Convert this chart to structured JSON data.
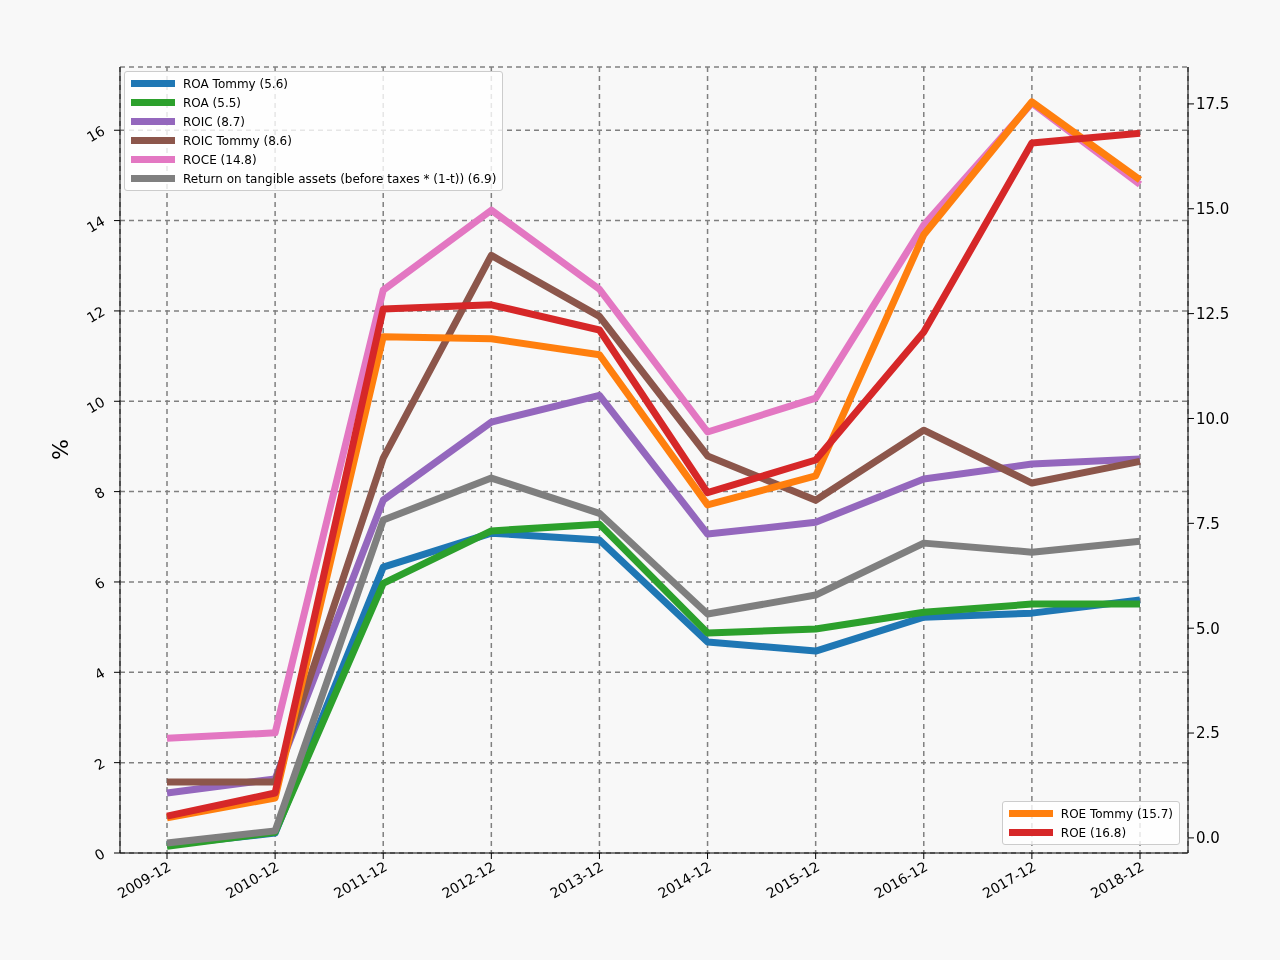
{
  "chart_data": {
    "type": "line",
    "ylabel": "%",
    "categories": [
      "2009-12",
      "2010-12",
      "2011-12",
      "2012-12",
      "2013-12",
      "2014-12",
      "2015-12",
      "2016-12",
      "2017-12",
      "2018-12"
    ],
    "ylim": [
      0,
      17.4
    ],
    "yticks": [
      0,
      2,
      4,
      6,
      8,
      10,
      12,
      14,
      16
    ],
    "y2lim": [
      -0.36,
      18.38
    ],
    "y2ticks": [
      {
        "value": 0,
        "label": "0.0"
      },
      2.5,
      {
        "value": 5,
        "label": "5.0"
      },
      7.5,
      {
        "value": 10,
        "label": "10.0"
      },
      12.5,
      {
        "value": 15,
        "label": "15.0"
      },
      17.5
    ],
    "grid": true,
    "legend": "top left",
    "series": [
      {
        "name": "ROA Tommy (5.6)",
        "color": "#1f77b4",
        "values": [
          0.18,
          0.44,
          6.33,
          7.08,
          6.93,
          4.67,
          4.47,
          5.22,
          5.31,
          5.6
        ]
      },
      {
        "name": "ROA (5.5)",
        "color": "#2ca02c",
        "values": [
          0.15,
          0.46,
          5.97,
          7.13,
          7.28,
          4.87,
          4.96,
          5.33,
          5.51,
          5.51
        ]
      },
      {
        "name": "ROIC (8.7)",
        "color": "#9467bd",
        "values": [
          1.33,
          1.64,
          7.81,
          9.54,
          10.13,
          7.06,
          7.32,
          8.28,
          8.61,
          8.72
        ]
      },
      {
        "name": "ROIC Tommy (8.6)",
        "color": "#8c564b",
        "values": [
          1.57,
          1.57,
          8.74,
          13.23,
          11.88,
          8.79,
          7.81,
          9.36,
          8.19,
          8.67
        ]
      },
      {
        "name": "ROCE (14.8)",
        "color": "#e377c2",
        "values": [
          2.54,
          2.66,
          12.46,
          14.23,
          12.48,
          9.32,
          10.07,
          13.9,
          16.6,
          14.8
        ]
      },
      {
        "name": "Return on tangible assets (before taxes * (1-t)) (6.9)",
        "color": "#7f7f7f",
        "values": [
          0.22,
          0.49,
          7.37,
          8.3,
          7.52,
          5.29,
          5.71,
          6.86,
          6.66,
          6.9
        ]
      },
      {
        "name": "ROE Tommy (15.7)",
        "color": "#ff7f0e",
        "axis": "y2",
        "values": [
          0.48,
          0.95,
          11.95,
          11.9,
          11.52,
          7.94,
          8.63,
          14.38,
          17.55,
          15.69
        ]
      },
      {
        "name": "ROE (16.8)",
        "color": "#d62728",
        "axis": "y2",
        "values": [
          0.52,
          1.07,
          12.61,
          12.71,
          12.11,
          8.23,
          9.01,
          12.06,
          16.57,
          16.8
        ]
      }
    ]
  }
}
